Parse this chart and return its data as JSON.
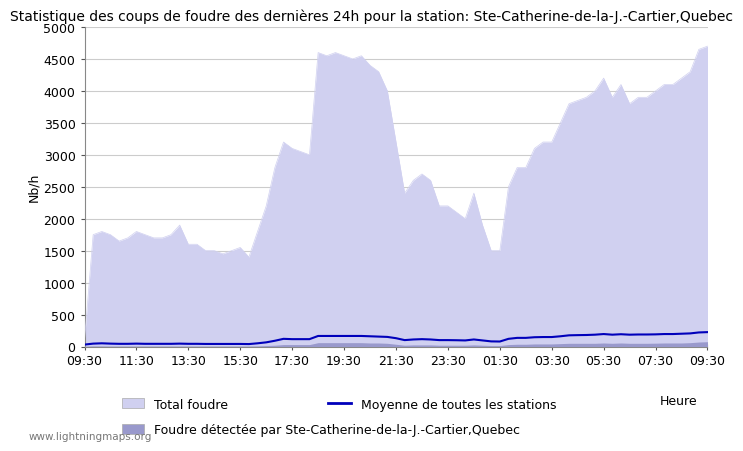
{
  "title": "Statistique des coups de foudre des dernières 24h pour la station: Ste-Catherine-de-la-J.-Cartier,Quebec",
  "ylabel": "Nb/h",
  "xlabel_right": "Heure",
  "watermark": "www.lightningmaps.org",
  "x_labels": [
    "09:30",
    "11:30",
    "13:30",
    "15:30",
    "17:30",
    "19:30",
    "21:30",
    "23:30",
    "01:30",
    "03:30",
    "05:30",
    "07:30",
    "09:30"
  ],
  "ylim": [
    0,
    5000
  ],
  "yticks": [
    0,
    500,
    1000,
    1500,
    2000,
    2500,
    3000,
    3500,
    4000,
    4500,
    5000
  ],
  "total_foudre": [
    100,
    1750,
    1800,
    1750,
    1650,
    1700,
    1800,
    1750,
    1700,
    1700,
    1750,
    1900,
    1600,
    1600,
    1500,
    1500,
    1450,
    1500,
    1550,
    1400,
    1800,
    2200,
    2800,
    3200,
    3100,
    3050,
    3000,
    4600,
    4550,
    4600,
    4550,
    4500,
    4550,
    4400,
    4300,
    4000,
    3200,
    2400,
    2600,
    2700,
    2600,
    2200,
    2200,
    2100,
    2000,
    2400,
    1900,
    1500,
    1500,
    2500,
    2800,
    2800,
    3100,
    3200,
    3200,
    3500,
    3800,
    3850,
    3900,
    4000,
    4200,
    3900,
    4100,
    3800,
    3900,
    3900,
    4000,
    4100,
    4100,
    4200,
    4300,
    4650,
    4700
  ],
  "detected": [
    5,
    10,
    10,
    8,
    8,
    8,
    8,
    8,
    8,
    8,
    8,
    8,
    8,
    8,
    8,
    8,
    8,
    8,
    8,
    8,
    10,
    15,
    20,
    30,
    30,
    30,
    30,
    60,
    60,
    60,
    60,
    60,
    60,
    55,
    55,
    50,
    35,
    20,
    25,
    25,
    25,
    20,
    20,
    20,
    20,
    25,
    20,
    15,
    15,
    30,
    35,
    35,
    40,
    40,
    40,
    45,
    50,
    50,
    50,
    50,
    55,
    50,
    55,
    50,
    50,
    50,
    52,
    55,
    55,
    55,
    60,
    70,
    75
  ],
  "moyenne": [
    30,
    45,
    50,
    45,
    42,
    42,
    45,
    42,
    42,
    42,
    42,
    45,
    42,
    42,
    40,
    40,
    40,
    40,
    40,
    38,
    50,
    65,
    90,
    120,
    115,
    115,
    115,
    165,
    165,
    165,
    165,
    165,
    165,
    160,
    155,
    150,
    130,
    100,
    110,
    115,
    110,
    100,
    100,
    98,
    95,
    110,
    95,
    80,
    78,
    120,
    135,
    135,
    145,
    148,
    148,
    160,
    175,
    178,
    180,
    185,
    195,
    185,
    192,
    185,
    188,
    188,
    190,
    195,
    195,
    200,
    205,
    220,
    225
  ],
  "color_total": "#d0d0f0",
  "color_detected": "#9999cc",
  "color_moyenne": "#0000bb",
  "background_color": "#ffffff",
  "plot_bg_color": "#ffffff",
  "grid_color": "#cccccc",
  "title_fontsize": 10,
  "axis_fontsize": 9,
  "tick_fontsize": 9
}
